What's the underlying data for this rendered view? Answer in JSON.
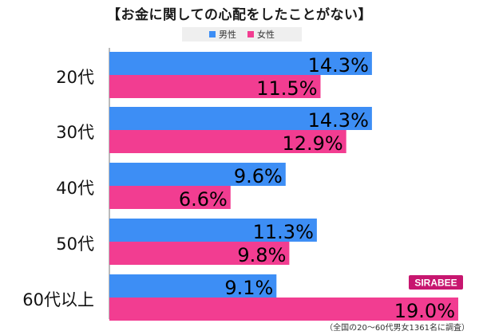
{
  "title": "【お金に関しての心配をしたことがない】",
  "legend": [
    {
      "label": "男性",
      "color": "#3d8ef5"
    },
    {
      "label": "女性",
      "color": "#f23d91"
    }
  ],
  "footnote": "（全国の20～60代男女1361名に調査）",
  "logo_text": "SIRABEE",
  "chart_data": {
    "type": "bar",
    "orientation": "horizontal",
    "categories": [
      "20代",
      "30代",
      "40代",
      "50代",
      "60代以上"
    ],
    "series": [
      {
        "name": "男性",
        "color": "#3d8ef5",
        "values": [
          14.3,
          14.3,
          9.6,
          11.3,
          9.1
        ]
      },
      {
        "name": "女性",
        "color": "#f23d91",
        "values": [
          11.5,
          12.9,
          6.6,
          9.8,
          19.0
        ]
      }
    ],
    "value_suffix": "%",
    "xlim": [
      0,
      20
    ],
    "grid": false,
    "legend_position": "top"
  }
}
